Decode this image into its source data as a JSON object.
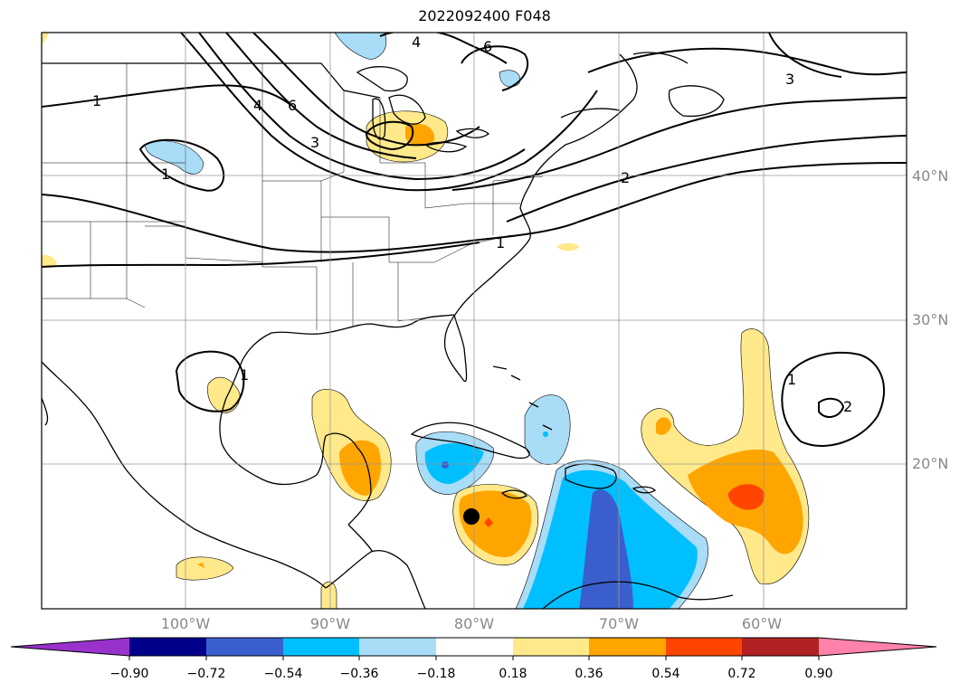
{
  "title": "2022092400 F048",
  "map": {
    "lon_range": [
      -110,
      -50
    ],
    "lat_range": [
      10,
      50
    ],
    "lon_labels": [
      "100°W",
      "90°W",
      "80°W",
      "70°W",
      "60°W"
    ],
    "lat_labels": [
      "40°N",
      "30°N",
      "20°N"
    ],
    "contour_labels": [
      "1",
      "1",
      "1",
      "1",
      "2",
      "3",
      "3",
      "4",
      "4",
      "6",
      "6",
      "1",
      "2"
    ],
    "storm_marker": {
      "lon": -80,
      "lat": 16.3
    }
  },
  "colorbar": {
    "ticks": [
      "−0.90",
      "−0.72",
      "−0.54",
      "−0.36",
      "−0.18",
      "0.18",
      "0.36",
      "0.54",
      "0.72",
      "0.90"
    ],
    "colors": [
      "#9932cc",
      "#00008b",
      "#3a5fcd",
      "#00bfff",
      "#a8dcf7",
      "#ffffff",
      "#ffe98a",
      "#ffa500",
      "#ff4500",
      "#b22222",
      "#ff82ab"
    ]
  }
}
